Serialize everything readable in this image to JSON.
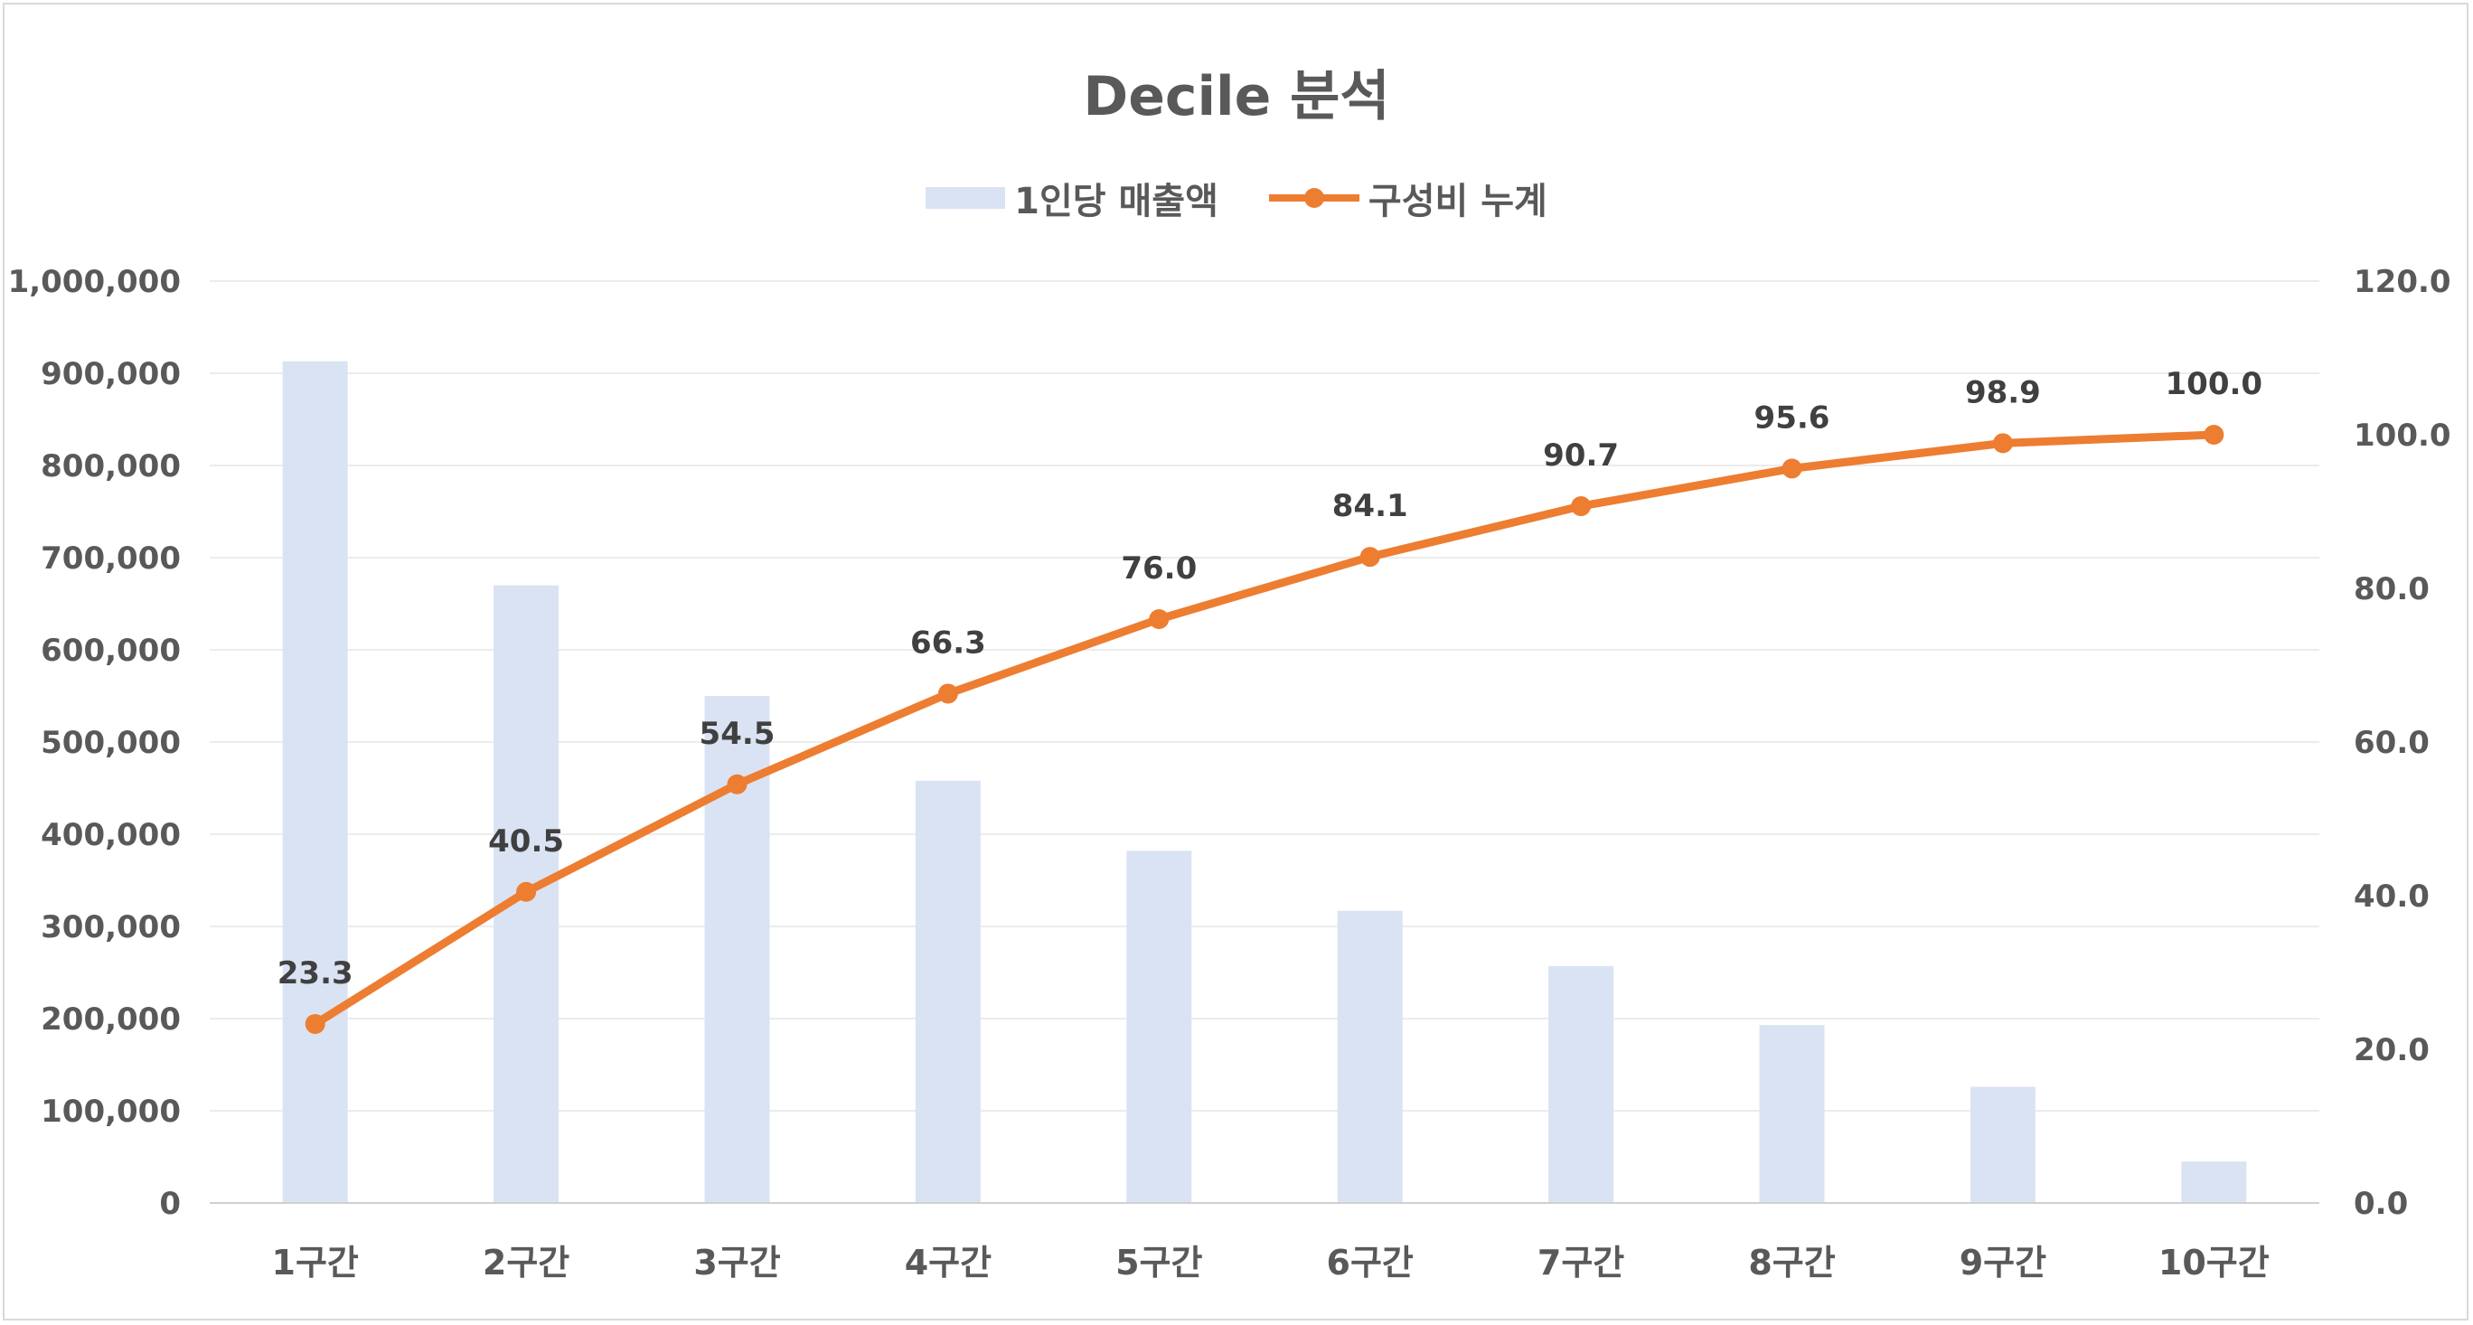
{
  "chart_data": {
    "type": "bar+line",
    "title": "Decile 분석",
    "categories": [
      "1구간",
      "2구간",
      "3구간",
      "4구간",
      "5구간",
      "6구간",
      "7구간",
      "8구간",
      "9구간",
      "10구간"
    ],
    "series": [
      {
        "name": "1인당 매출액",
        "type": "bar",
        "axis": "left",
        "color": "#dae3f3",
        "values": [
          913000,
          670000,
          550000,
          458000,
          382000,
          317000,
          257000,
          193000,
          126000,
          45000
        ]
      },
      {
        "name": "구성비 누계",
        "type": "line",
        "axis": "right",
        "color": "#ed7d31",
        "values": [
          23.3,
          40.5,
          54.5,
          66.3,
          76.0,
          84.1,
          90.7,
          95.6,
          98.9,
          100.0
        ],
        "labels": [
          "23.3",
          "40.5",
          "54.5",
          "66.3",
          "76.0",
          "84.1",
          "90.7",
          "95.6",
          "98.9",
          "100.0"
        ]
      }
    ],
    "y_left": {
      "ylim": [
        0,
        1000000
      ],
      "ticks": [
        "0",
        "100,000",
        "200,000",
        "300,000",
        "400,000",
        "500,000",
        "600,000",
        "700,000",
        "800,000",
        "900,000",
        "1,000,000"
      ]
    },
    "y_right": {
      "ylim": [
        0,
        120
      ],
      "ticks": [
        "0.0",
        "20.0",
        "40.0",
        "60.0",
        "80.0",
        "100.0",
        "120.0"
      ]
    },
    "grid": true,
    "legend": "top-center"
  }
}
